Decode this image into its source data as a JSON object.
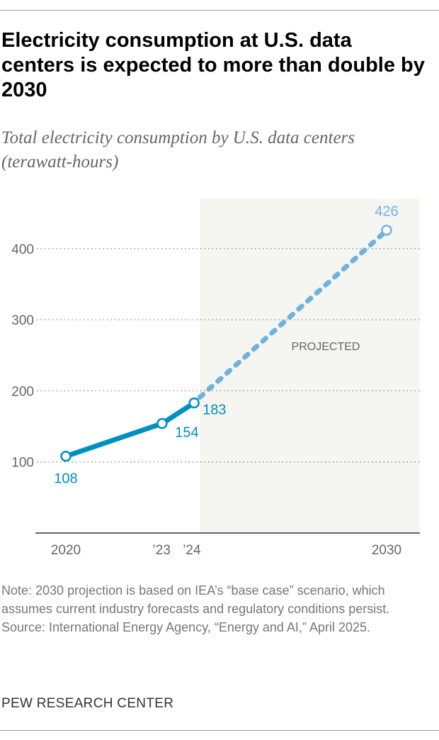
{
  "title": "Electricity consumption at U.S. data centers is expected to more than double by 2030",
  "subtitle": "Total electricity consumption by U.S. data centers (terawatt-hours)",
  "note": "Note: 2030 projection is based on IEA’s “base case” scenario, which assumes current industry forecasts and regulatory conditions persist.",
  "source": "Source: International Energy Agency, “Energy and AI,” April 2025.",
  "logo": "PEW RESEARCH CENTER",
  "chart_data": {
    "type": "line",
    "x": [
      2020,
      2023,
      2024,
      2030
    ],
    "x_tick_labels": [
      "2020",
      "’23",
      "’24",
      "2030"
    ],
    "series": [
      {
        "values": [
          108,
          154,
          183
        ],
        "x": [
          2020,
          2023,
          2024
        ],
        "style": "solid",
        "color": "#0090c0"
      },
      {
        "values": [
          183,
          426
        ],
        "x": [
          2024,
          2030
        ],
        "style": "dashed",
        "color": "#6eb3dc"
      }
    ],
    "data_labels": [
      "108",
      "154",
      "183",
      "426"
    ],
    "y_ticks": [
      100,
      200,
      300,
      400
    ],
    "y_tick_labels": [
      "100",
      "200",
      "300",
      "400"
    ],
    "ylim": [
      0,
      470
    ],
    "xlim": [
      2019.5,
      2031.05
    ],
    "grid": true,
    "annotation": "PROJECTED",
    "shaded_region": [
      2024.18,
      2031.05
    ],
    "shade_color": "#f5f5f1"
  }
}
